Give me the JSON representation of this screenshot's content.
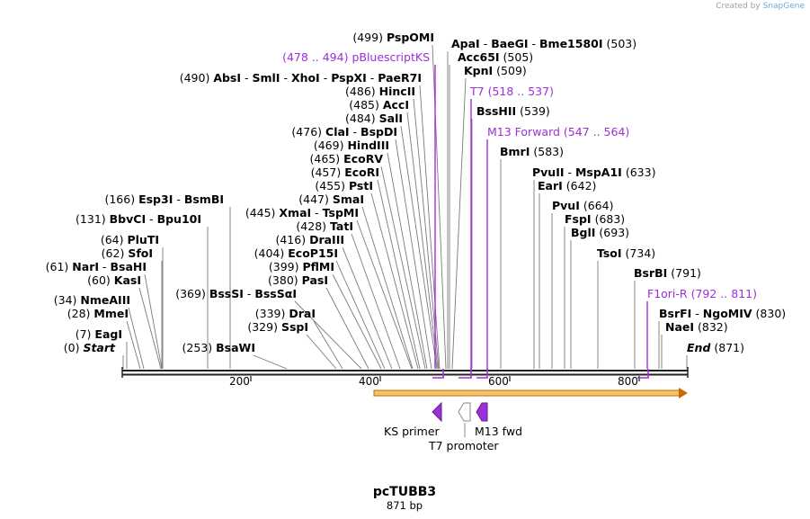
{
  "credit": {
    "prefix": "Created by",
    "brand": "SnapGene"
  },
  "plasmid": {
    "name": "pcTUBB3",
    "length_label": "871 bp"
  },
  "ruler_ticks": [
    {
      "bp": 200,
      "label": "200"
    },
    {
      "bp": 400,
      "label": "400"
    },
    {
      "bp": 600,
      "label": "600"
    },
    {
      "bp": 800,
      "label": "800"
    }
  ],
  "left_sites": [
    {
      "pos": "(0)",
      "names": [
        "Start"
      ],
      "italic": true
    },
    {
      "pos": "(7)",
      "names": [
        "EagI"
      ]
    },
    {
      "pos": "(28)",
      "names": [
        "MmeI"
      ]
    },
    {
      "pos": "(34)",
      "names": [
        "NmeAIII"
      ]
    },
    {
      "pos": "(60)",
      "names": [
        "KasI"
      ]
    },
    {
      "pos": "(61)",
      "names": [
        "NarI",
        "BsaHI"
      ]
    },
    {
      "pos": "(62)",
      "names": [
        "SfoI"
      ]
    },
    {
      "pos": "(64)",
      "names": [
        "PluTI"
      ]
    },
    {
      "pos": "(131)",
      "names": [
        "BbvCI",
        "Bpu10I"
      ]
    },
    {
      "pos": "(166)",
      "names": [
        "Esp3I",
        "BsmBI"
      ]
    },
    {
      "pos": "(253)",
      "names": [
        "BsaWI"
      ]
    },
    {
      "pos": "(329)",
      "names": [
        "SspI"
      ]
    },
    {
      "pos": "(339)",
      "names": [
        "DraI"
      ]
    },
    {
      "pos": "(369)",
      "names": [
        "BssSI",
        "BssSαI"
      ]
    },
    {
      "pos": "(380)",
      "names": [
        "PasI"
      ]
    },
    {
      "pos": "(399)",
      "names": [
        "PflMI"
      ]
    },
    {
      "pos": "(404)",
      "names": [
        "EcoP15I"
      ]
    },
    {
      "pos": "(416)",
      "names": [
        "DraIII"
      ]
    },
    {
      "pos": "(428)",
      "names": [
        "TatI"
      ]
    },
    {
      "pos": "(445)",
      "names": [
        "XmaI",
        "TspMI"
      ]
    },
    {
      "pos": "(447)",
      "names": [
        "SmaI"
      ]
    },
    {
      "pos": "(455)",
      "names": [
        "PstI"
      ]
    },
    {
      "pos": "(457)",
      "names": [
        "EcoRI"
      ]
    },
    {
      "pos": "(465)",
      "names": [
        "EcoRV"
      ]
    },
    {
      "pos": "(469)",
      "names": [
        "HindIII"
      ]
    },
    {
      "pos": "(476)",
      "names": [
        "ClaI",
        "BspDI"
      ]
    },
    {
      "pos": "(484)",
      "names": [
        "SalI"
      ]
    },
    {
      "pos": "(485)",
      "names": [
        "AccI"
      ]
    },
    {
      "pos": "(486)",
      "names": [
        "HincII"
      ]
    },
    {
      "pos": "(490)",
      "names": [
        "AbsI",
        "SmlI",
        "XhoI",
        "PspXI",
        "PaeR7I"
      ]
    },
    {
      "pos": "(499)",
      "names": [
        "PspOMI"
      ]
    }
  ],
  "right_sites": [
    {
      "pos": "(503)",
      "names": [
        "ApaI",
        "BaeGI",
        "Bme1580I"
      ]
    },
    {
      "pos": "(505)",
      "names": [
        "Acc65I"
      ]
    },
    {
      "pos": "(509)",
      "names": [
        "KpnI"
      ]
    },
    {
      "pos": "(539)",
      "names": [
        "BssHII"
      ]
    },
    {
      "pos": "(583)",
      "names": [
        "BmrI"
      ]
    },
    {
      "pos": "(633)",
      "names": [
        "PvuII",
        "MspA1I"
      ]
    },
    {
      "pos": "(642)",
      "names": [
        "EarI"
      ]
    },
    {
      "pos": "(664)",
      "names": [
        "PvuI"
      ]
    },
    {
      "pos": "(683)",
      "names": [
        "FspI"
      ]
    },
    {
      "pos": "(693)",
      "names": [
        "BglI"
      ]
    },
    {
      "pos": "(734)",
      "names": [
        "TsoI"
      ]
    },
    {
      "pos": "(791)",
      "names": [
        "BsrBI"
      ]
    },
    {
      "pos": "(830)",
      "names": [
        "BsrFI",
        "NgoMIV"
      ]
    },
    {
      "pos": "(832)",
      "names": [
        "NaeI"
      ]
    },
    {
      "pos": "(871)",
      "names": [
        "End"
      ],
      "italic": true
    }
  ],
  "primer_sites": [
    {
      "name": "pBluescriptKS",
      "range": "(478 .. 494)"
    },
    {
      "name": "T7",
      "range": "(518 .. 537)"
    },
    {
      "name": "M13 Forward",
      "range": "(547 .. 564)"
    },
    {
      "name": "F1ori-R",
      "range": "(792 .. 811)"
    }
  ],
  "features": [
    {
      "name": "KS primer"
    },
    {
      "name": "T7 promoter"
    },
    {
      "name": "M13 fwd"
    }
  ],
  "colors": {
    "primer": "#9b30d9",
    "orf_fill": "#f5c26b",
    "orf_stroke": "#c76a00",
    "backbone": "#222222",
    "leader": "#7a7a7a"
  }
}
